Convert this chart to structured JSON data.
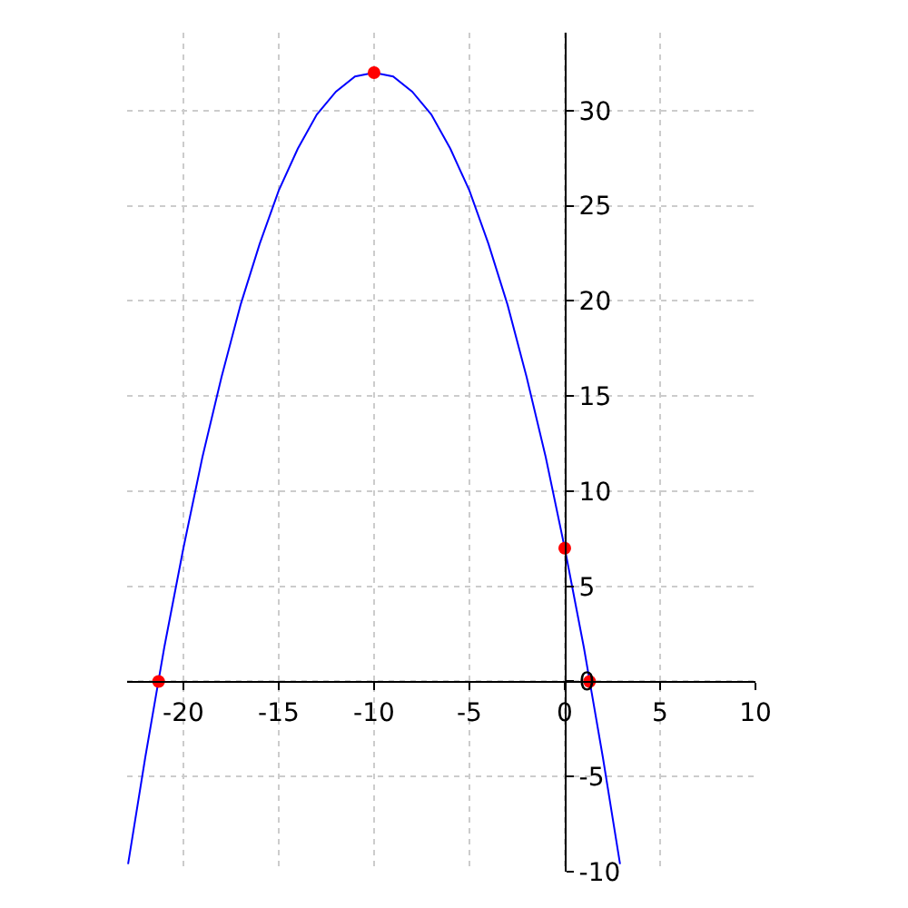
{
  "chart_data": {
    "type": "line",
    "xlim": [
      -22.95,
      10
    ],
    "ylim": [
      -10,
      34.1
    ],
    "xticks": [
      -20,
      -15,
      -10,
      -5,
      0,
      5,
      10
    ],
    "yticks": [
      -10,
      -5,
      0,
      5,
      10,
      15,
      20,
      25,
      30
    ],
    "grid": true,
    "series": [
      {
        "color": "#0000ff",
        "marker": "none",
        "line_style": "solid",
        "x": [
          -22.9,
          -22,
          -21,
          -20,
          -19,
          -18,
          -17,
          -16,
          -15,
          -14,
          -13,
          -12,
          -11,
          -10,
          -9,
          -8,
          -7,
          -6,
          -5,
          -4,
          -3,
          -2,
          -1,
          0,
          1,
          2,
          2.9
        ],
        "values": [
          -9.6,
          -4,
          1.8,
          7,
          11.8,
          16,
          19.8,
          23,
          25.8,
          28,
          29.8,
          31,
          31.8,
          32,
          31.8,
          31,
          29.8,
          28,
          25.8,
          23,
          19.8,
          16,
          11.8,
          7,
          1.8,
          -4,
          -9.6
        ]
      },
      {
        "type": "scatter",
        "color": "#ff0000",
        "marker": "circle",
        "x": [
          -21.3,
          -10,
          0,
          1.3
        ],
        "values": [
          0,
          32,
          7,
          0
        ]
      }
    ]
  }
}
